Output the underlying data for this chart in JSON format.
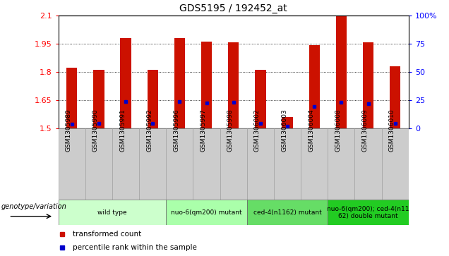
{
  "title": "GDS5195 / 192452_at",
  "samples": [
    "GSM1305989",
    "GSM1305990",
    "GSM1305991",
    "GSM1305992",
    "GSM1305996",
    "GSM1305997",
    "GSM1305998",
    "GSM1306002",
    "GSM1306003",
    "GSM1306004",
    "GSM1306008",
    "GSM1306009",
    "GSM1306010"
  ],
  "red_values": [
    1.82,
    1.81,
    1.978,
    1.81,
    1.978,
    1.96,
    1.955,
    1.81,
    1.56,
    1.94,
    2.095,
    1.955,
    1.83
  ],
  "blue_values": [
    1.52,
    1.525,
    1.64,
    1.525,
    1.64,
    1.635,
    1.638,
    1.525,
    1.51,
    1.615,
    1.638,
    1.63,
    1.525
  ],
  "ymin": 1.5,
  "ymax": 2.1,
  "yticks_left": [
    1.5,
    1.65,
    1.8,
    1.95,
    2.1
  ],
  "yticks_right": [
    0,
    25,
    50,
    75,
    100
  ],
  "groups": [
    {
      "label": "wild type",
      "start": 0,
      "end": 4
    },
    {
      "label": "nuo-6(qm200) mutant",
      "start": 4,
      "end": 7
    },
    {
      "label": "ced-4(n1162) mutant",
      "start": 7,
      "end": 10
    },
    {
      "label": "nuo-6(qm200); ced-4(n11\n62) double mutant",
      "start": 10,
      "end": 13
    }
  ],
  "group_colors": [
    "#ccffcc",
    "#aaffaa",
    "#66dd66",
    "#22cc22"
  ],
  "bar_color": "#cc1100",
  "blue_color": "#0000cc",
  "tick_area_color": "#cccccc",
  "grid_lines": [
    1.95,
    1.8,
    1.65
  ],
  "legend_items": [
    {
      "label": "transformed count",
      "color": "#cc1100",
      "marker": "s"
    },
    {
      "label": "percentile rank within the sample",
      "color": "#0000cc",
      "marker": "s"
    }
  ],
  "genotype_label": "genotype/variation"
}
